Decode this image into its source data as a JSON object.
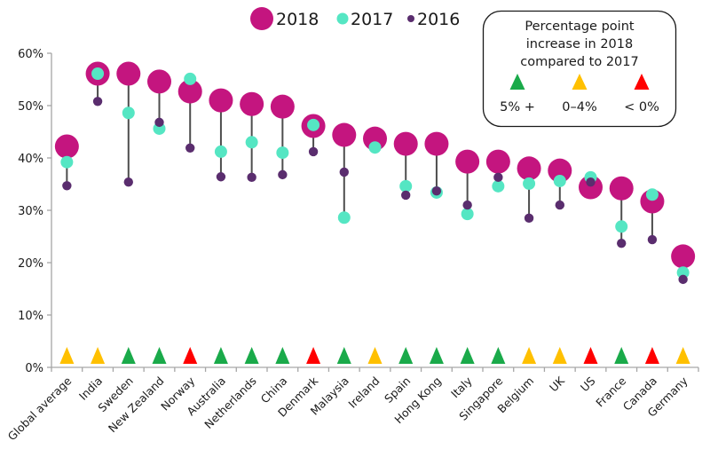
{
  "chart_data": {
    "type": "scatter",
    "subtype": "dot-plot with connectors",
    "title": "",
    "xlabel": "",
    "ylabel": "",
    "ylim": [
      0,
      60
    ],
    "yticks": [
      0,
      10,
      20,
      30,
      40,
      50,
      60
    ],
    "ytick_labels": [
      "0%",
      "10%",
      "20%",
      "30%",
      "40%",
      "50%",
      "60%"
    ],
    "grid": false,
    "categories": [
      "Global average",
      "India",
      "Sweden",
      "New Zealand",
      "Norway",
      "Australia",
      "Netherlands",
      "China",
      "Denmark",
      "Malaysia",
      "Ireland",
      "Spain",
      "Hong Kong",
      "Italy",
      "Singapore",
      "Belgium",
      "UK",
      "US",
      "France",
      "Canada",
      "Germany"
    ],
    "series": [
      {
        "name": "2018",
        "color": "#C4157F",
        "values": [
          42.2,
          56.1,
          56.1,
          54.6,
          52.7,
          51.0,
          50.3,
          49.8,
          46.1,
          44.4,
          43.7,
          42.7,
          42.7,
          39.3,
          39.3,
          38.0,
          37.6,
          34.4,
          34.2,
          31.7,
          21.2
        ]
      },
      {
        "name": "2017",
        "color": "#55E6C3",
        "values": [
          39.2,
          56.1,
          48.6,
          45.6,
          55.1,
          41.2,
          43.0,
          41.0,
          46.3,
          28.6,
          42.0,
          34.6,
          33.4,
          29.3,
          34.6,
          35.1,
          35.6,
          36.3,
          26.9,
          33.0,
          18.1
        ]
      },
      {
        "name": "2016",
        "color": "#5A2D6E",
        "values": [
          34.7,
          50.8,
          35.4,
          46.8,
          41.9,
          36.4,
          36.3,
          36.8,
          41.2,
          37.3,
          null,
          32.9,
          33.7,
          31.0,
          36.3,
          28.5,
          31.0,
          35.4,
          23.7,
          24.4,
          16.8
        ]
      }
    ],
    "change_indicator": {
      "title_lines": [
        "Percentage point",
        "increase in 2018",
        "compared to 2017"
      ],
      "levels": [
        {
          "key": "high",
          "label": "5% +",
          "color": "#1AAA4A"
        },
        {
          "key": "mid",
          "label": "0–4%",
          "color": "#FFC000"
        },
        {
          "key": "low",
          "label": "< 0%",
          "color": "#FF0000"
        }
      ],
      "per_category": [
        "mid",
        "mid",
        "high",
        "high",
        "low",
        "high",
        "high",
        "high",
        "low",
        "high",
        "mid",
        "high",
        "high",
        "high",
        "high",
        "mid",
        "mid",
        "low",
        "high",
        "low",
        "mid"
      ]
    },
    "legend": {
      "placement": "top-center",
      "entries": [
        "2018",
        "2017",
        "2016"
      ]
    },
    "connector_color": "#4D4D4D",
    "axis_color": "#A6A6A6"
  }
}
